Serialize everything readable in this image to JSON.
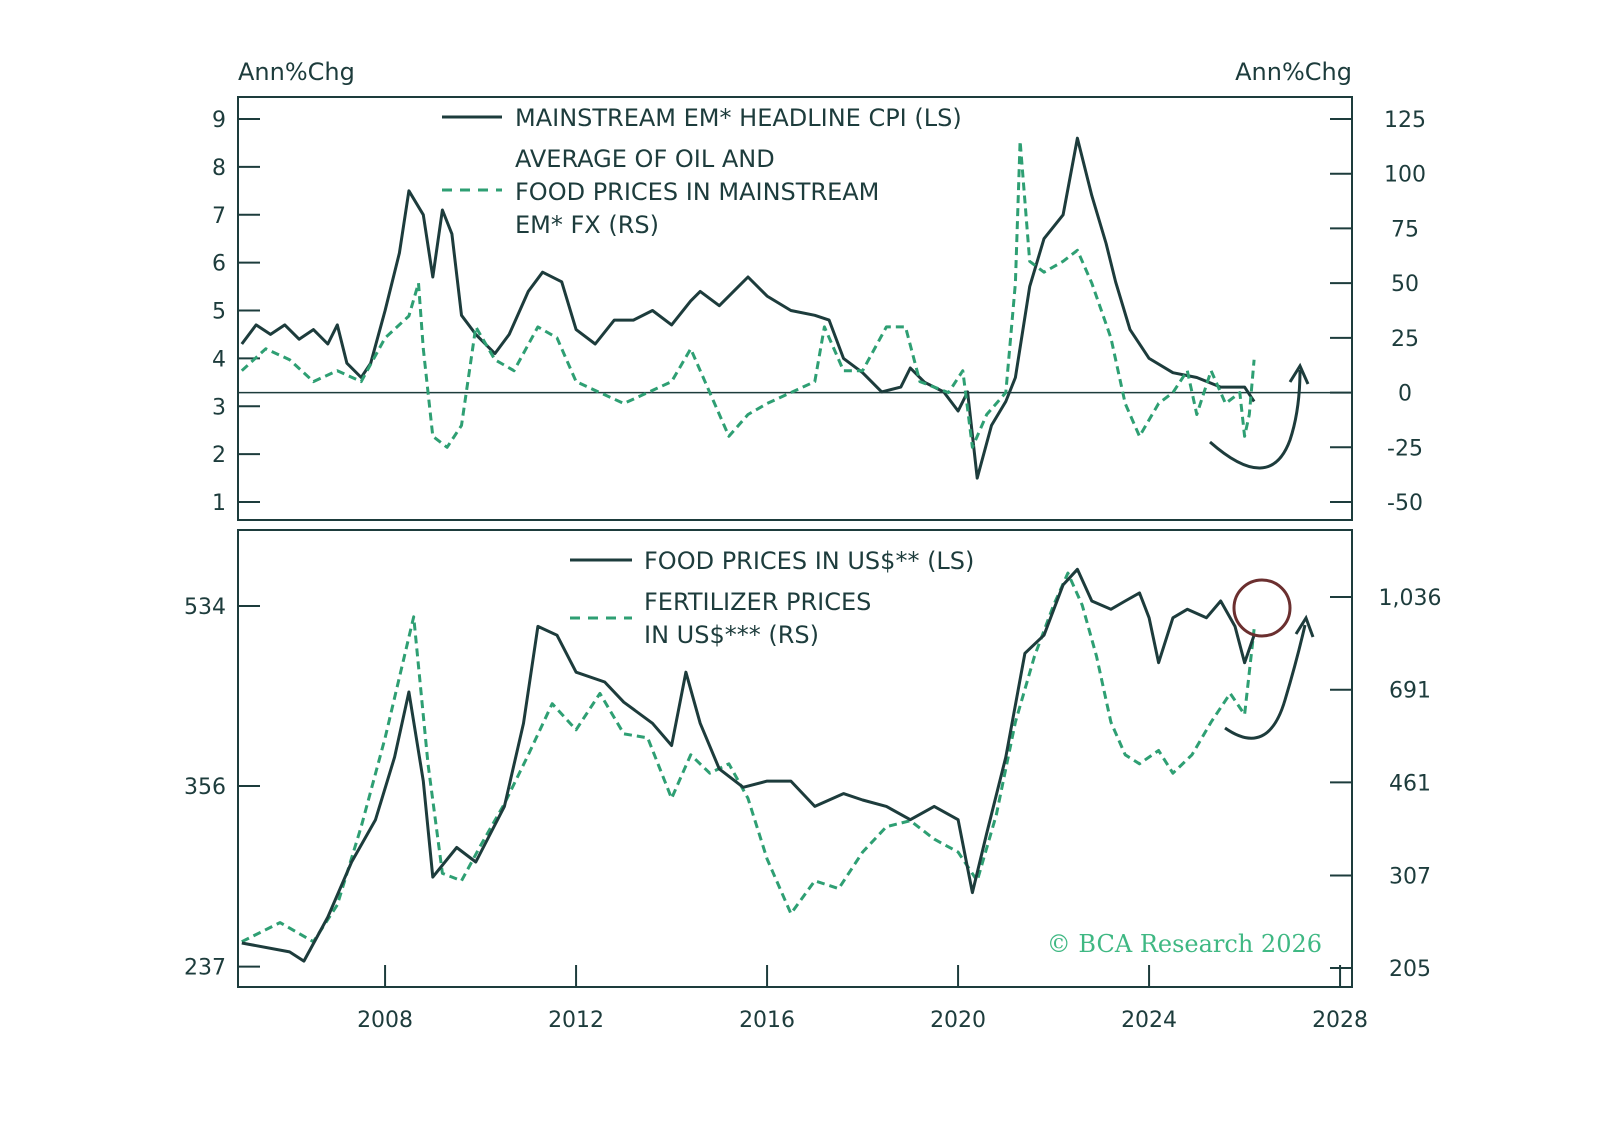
{
  "colors": {
    "dark": "#1d3c3c",
    "green": "#2e9f73",
    "annotation": "#6b2f2f"
  },
  "copyright": "© BCA Research 2026",
  "chart_data": [
    {
      "type": "line",
      "left_unit": "Ann%Chg",
      "right_unit": "Ann%Chg",
      "left_ylim": [
        1,
        9
      ],
      "right_ylim": [
        -50,
        125
      ],
      "left_ticks": [
        "9",
        "8",
        "7",
        "6",
        "5",
        "4",
        "3",
        "2",
        "1"
      ],
      "right_ticks": [
        "125",
        "100",
        "75",
        "50",
        "25",
        "0",
        "-25",
        "-50"
      ],
      "zero_line_right": 0,
      "xlim": [
        2004.92,
        2028.25
      ],
      "legend": [
        "MAINSTREAM EM* HEADLINE CPI (LS)",
        "AVERAGE OF OIL AND",
        "FOOD PRICES IN MAINSTREAM",
        "EM* FX (RS)"
      ],
      "series": [
        {
          "name": "MAINSTREAM EM* HEADLINE CPI (LS)",
          "axis": "left",
          "style": "solid",
          "x": [
            2005.0,
            2005.3,
            2005.6,
            2005.9,
            2006.2,
            2006.5,
            2006.8,
            2007.0,
            2007.2,
            2007.5,
            2007.7,
            2008.0,
            2008.3,
            2008.5,
            2008.8,
            2009.0,
            2009.2,
            2009.4,
            2009.6,
            2009.9,
            2010.3,
            2010.6,
            2011.0,
            2011.3,
            2011.7,
            2012.0,
            2012.4,
            2012.8,
            2013.2,
            2013.6,
            2014.0,
            2014.4,
            2014.6,
            2015.0,
            2015.4,
            2015.6,
            2016.0,
            2016.5,
            2017.0,
            2017.3,
            2017.6,
            2018.0,
            2018.4,
            2018.8,
            2019.0,
            2019.3,
            2019.7,
            2020.0,
            2020.2,
            2020.4,
            2020.7,
            2021.0,
            2021.2,
            2021.5,
            2021.8,
            2022.2,
            2022.5,
            2022.8,
            2023.1,
            2023.3,
            2023.6,
            2024.0,
            2024.5,
            2025.0,
            2025.5,
            2026.0,
            2026.2
          ],
          "y": [
            4.3,
            4.7,
            4.5,
            4.7,
            4.4,
            4.6,
            4.3,
            4.7,
            3.9,
            3.6,
            3.9,
            5.0,
            6.2,
            7.5,
            7.0,
            5.7,
            7.1,
            6.6,
            4.9,
            4.5,
            4.1,
            4.5,
            5.4,
            5.8,
            5.6,
            4.6,
            4.3,
            4.8,
            4.8,
            5.0,
            4.7,
            5.2,
            5.4,
            5.1,
            5.5,
            5.7,
            5.3,
            5.0,
            4.9,
            4.8,
            4.0,
            3.7,
            3.3,
            3.4,
            3.8,
            3.5,
            3.3,
            2.9,
            3.3,
            1.5,
            2.6,
            3.1,
            3.6,
            5.5,
            6.5,
            7.0,
            8.6,
            7.4,
            6.4,
            5.6,
            4.6,
            4.0,
            3.7,
            3.6,
            3.4,
            3.4,
            3.1
          ]
        },
        {
          "name": "AVERAGE OF OIL AND FOOD PRICES IN MAINSTREAM EM* FX (RS)",
          "axis": "right",
          "style": "dashed",
          "x": [
            2005.0,
            2005.5,
            2006.0,
            2006.5,
            2007.0,
            2007.5,
            2008.0,
            2008.5,
            2008.7,
            2008.8,
            2009.0,
            2009.3,
            2009.6,
            2009.9,
            2010.3,
            2010.7,
            2011.2,
            2011.6,
            2012.0,
            2012.5,
            2013.0,
            2013.5,
            2014.0,
            2014.4,
            2014.8,
            2015.2,
            2015.6,
            2016.0,
            2016.5,
            2017.0,
            2017.2,
            2017.6,
            2018.0,
            2018.5,
            2018.9,
            2019.2,
            2019.8,
            2020.1,
            2020.3,
            2020.6,
            2021.0,
            2021.2,
            2021.3,
            2021.5,
            2021.8,
            2022.2,
            2022.5,
            2022.8,
            2023.2,
            2023.5,
            2023.8,
            2024.2,
            2024.5,
            2024.8,
            2025.0,
            2025.3,
            2025.6,
            2025.9,
            2026.0,
            2026.1,
            2026.2
          ],
          "y": [
            10,
            20,
            15,
            5,
            10,
            5,
            25,
            35,
            50,
            20,
            -20,
            -25,
            -15,
            30,
            15,
            10,
            30,
            25,
            5,
            0,
            -5,
            0,
            5,
            20,
            0,
            -20,
            -10,
            -5,
            0,
            5,
            30,
            10,
            10,
            30,
            30,
            5,
            0,
            10,
            -25,
            -10,
            0,
            50,
            115,
            60,
            55,
            60,
            65,
            50,
            25,
            -5,
            -20,
            -5,
            0,
            10,
            -10,
            10,
            -5,
            0,
            -20,
            -10,
            15
          ]
        }
      ]
    },
    {
      "type": "line",
      "left_scale": "log",
      "right_scale": "log",
      "left_ticks": [
        "534",
        "356",
        "237"
      ],
      "right_ticks": [
        "1,036",
        "691",
        "461",
        "307",
        "205"
      ],
      "x_ticks": [
        "2008",
        "2012",
        "2016",
        "2020",
        "2024",
        "2028"
      ],
      "xlim": [
        2004.92,
        2028.25
      ],
      "legend": [
        "FOOD PRICES IN US$** (LS)",
        "FERTILIZER PRICES",
        "IN US$*** (RS)"
      ],
      "series": [
        {
          "name": "FOOD PRICES IN US$** (LS)",
          "axis": "left",
          "style": "solid",
          "x": [
            2005.0,
            2006.0,
            2006.3,
            2006.8,
            2007.3,
            2007.8,
            2008.2,
            2008.5,
            2008.8,
            2009.0,
            2009.5,
            2009.9,
            2010.5,
            2010.9,
            2011.2,
            2011.6,
            2012.0,
            2012.6,
            2013.0,
            2013.6,
            2014.0,
            2014.3,
            2014.6,
            2015.0,
            2015.5,
            2016.0,
            2016.5,
            2017.0,
            2017.6,
            2018.0,
            2018.5,
            2019.0,
            2019.5,
            2020.0,
            2020.3,
            2020.6,
            2021.0,
            2021.4,
            2021.8,
            2022.2,
            2022.5,
            2022.8,
            2023.2,
            2023.5,
            2023.8,
            2024.0,
            2024.2,
            2024.5,
            2024.8,
            2025.2,
            2025.5,
            2025.8,
            2026.0,
            2026.2
          ],
          "y": [
            250,
            245,
            240,
            265,
            300,
            330,
            380,
            440,
            360,
            290,
            310,
            300,
            340,
            410,
            510,
            500,
            460,
            450,
            430,
            410,
            390,
            460,
            410,
            370,
            355,
            360,
            360,
            340,
            350,
            345,
            340,
            330,
            340,
            330,
            280,
            320,
            380,
            480,
            500,
            560,
            580,
            540,
            530,
            540,
            550,
            520,
            470,
            520,
            530,
            520,
            540,
            510,
            470,
            500
          ]
        },
        {
          "name": "FERTILIZER PRICES IN US$*** (RS)",
          "axis": "right",
          "style": "dashed",
          "x": [
            2005.0,
            2005.8,
            2006.5,
            2007.0,
            2007.5,
            2008.0,
            2008.6,
            2008.9,
            2009.2,
            2009.6,
            2010.0,
            2010.5,
            2011.0,
            2011.5,
            2012.0,
            2012.5,
            2013.0,
            2013.5,
            2014.0,
            2014.4,
            2014.8,
            2015.2,
            2015.6,
            2016.0,
            2016.5,
            2017.0,
            2017.5,
            2018.0,
            2018.5,
            2019.0,
            2019.5,
            2020.0,
            2020.4,
            2020.8,
            2021.2,
            2021.6,
            2022.0,
            2022.3,
            2022.6,
            2022.9,
            2023.2,
            2023.5,
            2023.8,
            2024.2,
            2024.5,
            2024.9,
            2025.3,
            2025.7,
            2026.0,
            2026.2
          ],
          "y": [
            230,
            250,
            230,
            270,
            380,
            560,
            950,
            500,
            310,
            300,
            350,
            420,
            520,
            650,
            580,
            680,
            570,
            560,
            430,
            520,
            480,
            500,
            430,
            330,
            260,
            300,
            290,
            340,
            380,
            390,
            360,
            340,
            300,
            400,
            600,
            800,
            1000,
            1150,
            1000,
            800,
            600,
            520,
            500,
            530,
            480,
            520,
            600,
            680,
            620,
            900
          ]
        }
      ]
    }
  ]
}
